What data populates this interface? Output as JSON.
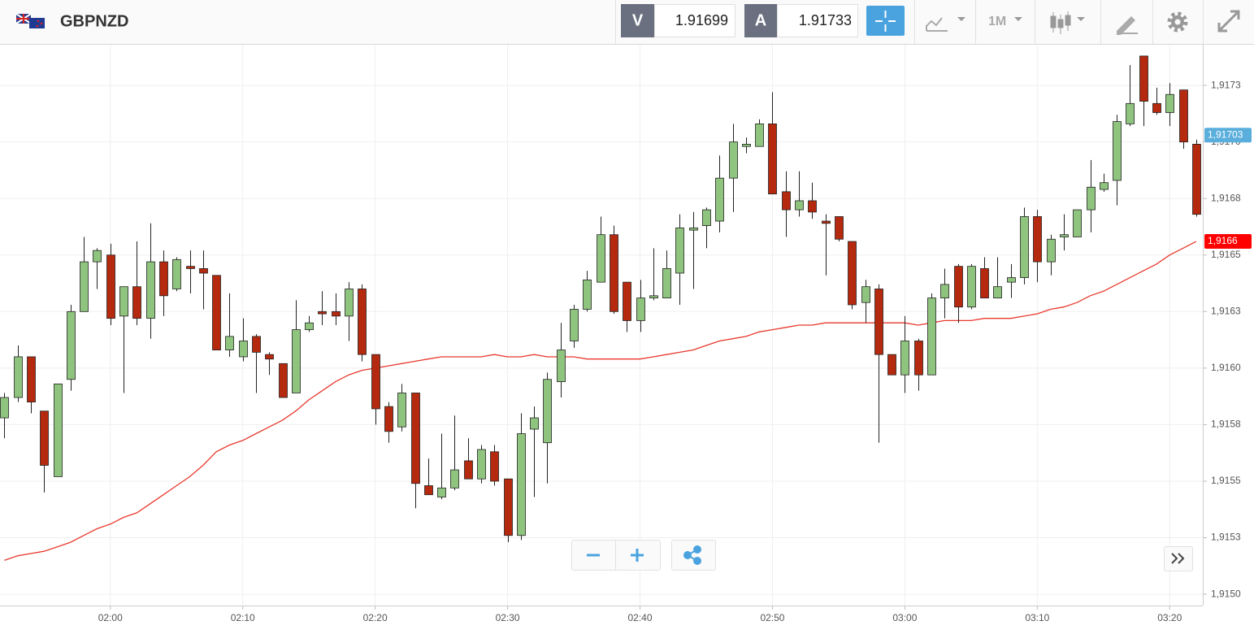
{
  "header": {
    "symbol": "GBPNZD",
    "bid_label": "V",
    "bid": "1.91699",
    "ask_label": "A",
    "ask": "1.91733",
    "timeframe": "1M"
  },
  "chart_data": {
    "type": "candlestick",
    "x": [
      "01:52",
      "01:53",
      "01:54",
      "01:55",
      "01:56",
      "01:57",
      "01:58",
      "01:59",
      "02:00",
      "02:01",
      "02:02",
      "02:03",
      "02:04",
      "02:05",
      "02:06",
      "02:07",
      "02:08",
      "02:09",
      "02:10",
      "02:11",
      "02:12",
      "02:13",
      "02:14",
      "02:15",
      "02:16",
      "02:17",
      "02:18",
      "02:19",
      "02:20",
      "02:21",
      "02:22",
      "02:23",
      "02:24",
      "02:25",
      "02:26",
      "02:27",
      "02:28",
      "02:29",
      "02:30",
      "02:31",
      "02:32",
      "02:33",
      "02:34",
      "02:35",
      "02:36",
      "02:37",
      "02:38",
      "02:39",
      "02:40",
      "02:41",
      "02:42",
      "02:43",
      "02:44",
      "02:45",
      "02:46",
      "02:47",
      "02:48",
      "02:49",
      "02:50",
      "02:51",
      "02:52",
      "02:53",
      "02:54",
      "02:55",
      "02:56",
      "02:57",
      "02:58",
      "02:59",
      "03:00",
      "03:01",
      "03:02",
      "03:03",
      "03:04",
      "03:05",
      "03:06",
      "03:07",
      "03:08",
      "03:09",
      "03:10",
      "03:11",
      "03:12",
      "03:13",
      "03:14",
      "03:15",
      "03:16",
      "03:17",
      "03:18",
      "03:19",
      "03:20",
      "03:21",
      "03:22"
    ],
    "open": [
      1.91578,
      1.91587,
      1.91605,
      1.91581,
      1.91552,
      1.91595,
      1.91625,
      1.91647,
      1.9165,
      1.91623,
      1.91636,
      1.91622,
      1.91647,
      1.91635,
      1.91645,
      1.91644,
      1.91641,
      1.91608,
      1.91605,
      1.91614,
      1.91606,
      1.91602,
      1.91589,
      1.91617,
      1.91625,
      1.91625,
      1.91623,
      1.91635,
      1.91606,
      1.91583,
      1.91574,
      1.91589,
      1.91548,
      1.91543,
      1.91547,
      1.91559,
      1.91551,
      1.91563,
      1.91551,
      1.91526,
      1.91573,
      1.91567,
      1.91594,
      1.91612,
      1.91626,
      1.91638,
      1.91659,
      1.91638,
      1.91621,
      1.91631,
      1.91631,
      1.91642,
      1.91661,
      1.91663,
      1.91665,
      1.91684,
      1.91698,
      1.91698,
      1.91708,
      1.91678,
      1.9167,
      1.91674,
      1.91665,
      1.91667,
      1.91656,
      1.91629,
      1.91635,
      1.91606,
      1.91597,
      1.91612,
      1.91597,
      1.91631,
      1.91645,
      1.91627,
      1.91644,
      1.91631,
      1.91638,
      1.9164,
      1.91667,
      1.91647,
      1.91658,
      1.91658,
      1.9167,
      1.91679,
      1.91683,
      1.91708,
      1.91738,
      1.91717,
      1.91713,
      1.91723,
      1.91699
    ],
    "high": [
      1.91589,
      1.9161,
      1.91605,
      1.91581,
      1.91593,
      1.91628,
      1.91658,
      1.91653,
      1.91655,
      1.91636,
      1.91656,
      1.91664,
      1.91652,
      1.91649,
      1.91652,
      1.91652,
      1.91641,
      1.91633,
      1.91622,
      1.91615,
      1.91607,
      1.91602,
      1.9163,
      1.91623,
      1.91634,
      1.91633,
      1.91638,
      1.91637,
      1.91606,
      1.91585,
      1.91593,
      1.91589,
      1.9156,
      1.91571,
      1.91579,
      1.91569,
      1.91566,
      1.91566,
      1.91551,
      1.9158,
      1.91583,
      1.91598,
      1.9162,
      1.91628,
      1.91643,
      1.91667,
      1.91663,
      1.91638,
      1.91639,
      1.91653,
      1.91652,
      1.91668,
      1.91669,
      1.91671,
      1.91694,
      1.91708,
      1.91702,
      1.9171,
      1.91722,
      1.91687,
      1.91687,
      1.91682,
      1.91668,
      1.91667,
      1.91656,
      1.91639,
      1.91637,
      1.91606,
      1.91623,
      1.91613,
      1.91633,
      1.91644,
      1.91646,
      1.91646,
      1.91649,
      1.91649,
      1.91646,
      1.91671,
      1.9167,
      1.91659,
      1.91668,
      1.9167,
      1.91692,
      1.91686,
      1.91712,
      1.91734,
      1.91738,
      1.91724,
      1.91726,
      1.91723,
      1.91701
    ],
    "low": [
      1.91569,
      1.91585,
      1.9158,
      1.91545,
      1.91552,
      1.9159,
      1.91625,
      1.91635,
      1.91619,
      1.91589,
      1.91619,
      1.91613,
      1.91623,
      1.91634,
      1.91633,
      1.91626,
      1.91608,
      1.91605,
      1.91603,
      1.91589,
      1.91597,
      1.91587,
      1.91589,
      1.91616,
      1.91619,
      1.91619,
      1.91612,
      1.91603,
      1.91575,
      1.91567,
      1.91572,
      1.91538,
      1.91544,
      1.91542,
      1.91546,
      1.91551,
      1.91549,
      1.91548,
      1.91523,
      1.91524,
      1.91543,
      1.91549,
      1.91587,
      1.91609,
      1.91625,
      1.91638,
      1.91624,
      1.91616,
      1.91616,
      1.9163,
      1.91631,
      1.91628,
      1.91635,
      1.91653,
      1.9166,
      1.91669,
      1.91695,
      1.91698,
      1.91677,
      1.91658,
      1.91667,
      1.91666,
      1.91641,
      1.91656,
      1.91626,
      1.9162,
      1.91567,
      1.91597,
      1.91589,
      1.9159,
      1.91597,
      1.91622,
      1.9162,
      1.91626,
      1.91631,
      1.91631,
      1.91631,
      1.91637,
      1.91638,
      1.91641,
      1.91652,
      1.91658,
      1.9166,
      1.91678,
      1.91672,
      1.91707,
      1.91707,
      1.91712,
      1.91707,
      1.91697,
      1.91667
    ],
    "close": [
      1.91587,
      1.91605,
      1.91585,
      1.91557,
      1.91593,
      1.91625,
      1.91647,
      1.91652,
      1.91622,
      1.91636,
      1.91622,
      1.91647,
      1.91632,
      1.91648,
      1.91644,
      1.91642,
      1.91608,
      1.91614,
      1.91612,
      1.91607,
      1.91604,
      1.91587,
      1.91617,
      1.9162,
      1.91624,
      1.91623,
      1.91635,
      1.91606,
      1.91582,
      1.91572,
      1.91589,
      1.91549,
      1.91544,
      1.91547,
      1.91555,
      1.91551,
      1.91564,
      1.9155,
      1.91526,
      1.91571,
      1.91578,
      1.91595,
      1.91608,
      1.91626,
      1.91639,
      1.91659,
      1.91625,
      1.91621,
      1.91631,
      1.91632,
      1.91644,
      1.91662,
      1.91662,
      1.9167,
      1.91684,
      1.917,
      1.91699,
      1.91708,
      1.91677,
      1.9167,
      1.91674,
      1.91669,
      1.91664,
      1.91657,
      1.91628,
      1.91636,
      1.91606,
      1.91597,
      1.91612,
      1.91597,
      1.91631,
      1.91637,
      1.91627,
      1.91645,
      1.91631,
      1.91636,
      1.9164,
      1.91667,
      1.91647,
      1.91657,
      1.91659,
      1.9167,
      1.9168,
      1.91682,
      1.91709,
      1.91717,
      1.91718,
      1.91713,
      1.91721,
      1.917,
      1.91668
    ],
    "up_color": "#8fc47e",
    "down_color": "#b5290f",
    "moving_average": {
      "color": "#e8392e",
      "values": [
        1.91515,
        1.91517,
        1.91518,
        1.91519,
        1.91521,
        1.91523,
        1.91526,
        1.91529,
        1.91531,
        1.91534,
        1.91536,
        1.9154,
        1.91544,
        1.91548,
        1.91552,
        1.91557,
        1.91563,
        1.91566,
        1.91568,
        1.91571,
        1.91574,
        1.91577,
        1.91581,
        1.91586,
        1.9159,
        1.91594,
        1.91597,
        1.91599,
        1.916,
        1.91601,
        1.91602,
        1.91603,
        1.91604,
        1.91605,
        1.91605,
        1.91605,
        1.91605,
        1.91606,
        1.91605,
        1.91605,
        1.91606,
        1.91605,
        1.91605,
        1.91605,
        1.91604,
        1.91604,
        1.91604,
        1.91604,
        1.91604,
        1.91605,
        1.91606,
        1.91607,
        1.91608,
        1.9161,
        1.91612,
        1.91613,
        1.91614,
        1.91616,
        1.91617,
        1.91618,
        1.91619,
        1.91619,
        1.9162,
        1.9162,
        1.9162,
        1.9162,
        1.9162,
        1.9162,
        1.9162,
        1.91619,
        1.9162,
        1.91621,
        1.91621,
        1.91621,
        1.91622,
        1.91622,
        1.91622,
        1.91623,
        1.91624,
        1.91626,
        1.91627,
        1.91629,
        1.91632,
        1.91634,
        1.91637,
        1.9164,
        1.91643,
        1.91646,
        1.9165,
        1.91653,
        1.91656
      ]
    },
    "price_tags": [
      {
        "value": 1.91703,
        "label": "1,91703",
        "color": "#5aaedc"
      },
      {
        "value": 1.91656,
        "label": "1,9166",
        "color": "#ff0000"
      }
    ],
    "xlim": [
      "01:51:40",
      "03:22:30"
    ],
    "xticks": [
      "02:00",
      "02:10",
      "02:20",
      "02:30",
      "02:40",
      "02:50",
      "03:00",
      "03:10",
      "03:20"
    ],
    "ylim": [
      1.91495,
      1.91743
    ],
    "yticks": [
      {
        "value": 1.915,
        "label": "1,9150"
      },
      {
        "value": 1.91525,
        "label": "1,9153"
      },
      {
        "value": 1.9155,
        "label": "1,9155"
      },
      {
        "value": 1.91575,
        "label": "1,9158"
      },
      {
        "value": 1.916,
        "label": "1,9160"
      },
      {
        "value": 1.91625,
        "label": "1,9163"
      },
      {
        "value": 1.9165,
        "label": "1,9165"
      },
      {
        "value": 1.91675,
        "label": "1,9168"
      },
      {
        "value": 1.917,
        "label": "1,9170"
      },
      {
        "value": 1.91725,
        "label": "1,9173"
      }
    ],
    "grid": true
  }
}
